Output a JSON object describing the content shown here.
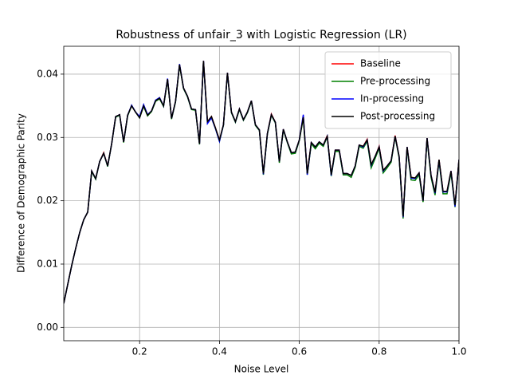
{
  "chart_data": {
    "type": "line",
    "title": "Robustness of unfair_3 with Logistic Regression (LR)",
    "xlabel": "Noise Level",
    "ylabel": "Difference of Demographic Parity",
    "x": [
      0.01,
      0.02,
      0.03,
      0.04,
      0.05,
      0.06,
      0.07,
      0.08,
      0.09,
      0.1,
      0.11,
      0.12,
      0.13,
      0.14,
      0.15,
      0.16,
      0.17,
      0.18,
      0.19,
      0.2,
      0.21,
      0.22,
      0.23,
      0.24,
      0.25,
      0.26,
      0.27,
      0.28,
      0.29,
      0.3,
      0.31,
      0.32,
      0.33,
      0.34,
      0.35,
      0.36,
      0.37,
      0.38,
      0.39,
      0.4,
      0.41,
      0.42,
      0.43,
      0.44,
      0.45,
      0.46,
      0.47,
      0.48,
      0.49,
      0.5,
      0.51,
      0.52,
      0.53,
      0.54,
      0.55,
      0.56,
      0.57,
      0.58,
      0.59,
      0.6,
      0.61,
      0.62,
      0.63,
      0.64,
      0.65,
      0.66,
      0.67,
      0.68,
      0.69,
      0.7,
      0.71,
      0.72,
      0.73,
      0.74,
      0.75,
      0.76,
      0.77,
      0.78,
      0.79,
      0.8,
      0.81,
      0.82,
      0.83,
      0.84,
      0.85,
      0.86,
      0.87,
      0.88,
      0.89,
      0.9,
      0.91,
      0.92,
      0.93,
      0.94,
      0.95,
      0.96,
      0.97,
      0.98,
      0.99,
      1.0
    ],
    "series": [
      {
        "name": "Baseline",
        "color": "#ff0000",
        "values": [
          0.0038,
          0.0068,
          0.0098,
          0.0125,
          0.015,
          0.017,
          0.0182,
          0.0247,
          0.0235,
          0.0262,
          0.0276,
          0.0255,
          0.029,
          0.0333,
          0.0336,
          0.0293,
          0.0335,
          0.035,
          0.034,
          0.0332,
          0.035,
          0.0335,
          0.0342,
          0.0358,
          0.0362,
          0.035,
          0.0392,
          0.033,
          0.0357,
          0.0415,
          0.0378,
          0.0365,
          0.0345,
          0.0344,
          0.029,
          0.0421,
          0.0325,
          0.0333,
          0.0315,
          0.0296,
          0.032,
          0.0402,
          0.034,
          0.0325,
          0.0345,
          0.0328,
          0.034,
          0.0358,
          0.032,
          0.0312,
          0.0243,
          0.0306,
          0.0337,
          0.0324,
          0.0262,
          0.0313,
          0.0293,
          0.0276,
          0.0277,
          0.0296,
          0.0334,
          0.0243,
          0.0292,
          0.0285,
          0.0293,
          0.0288,
          0.0303,
          0.0241,
          0.028,
          0.028,
          0.0243,
          0.0243,
          0.024,
          0.0255,
          0.0288,
          0.0286,
          0.0297,
          0.0257,
          0.027,
          0.0286,
          0.0248,
          0.0255,
          0.0263,
          0.0303,
          0.027,
          0.0175,
          0.0285,
          0.0237,
          0.0236,
          0.0244,
          0.02,
          0.0299,
          0.024,
          0.0213,
          0.0265,
          0.0215,
          0.0215,
          0.0247,
          0.0193,
          0.0265
        ]
      },
      {
        "name": "Pre-processing",
        "color": "#008000",
        "values": [
          0.0038,
          0.0068,
          0.0098,
          0.0125,
          0.015,
          0.017,
          0.0182,
          0.0246,
          0.0234,
          0.0262,
          0.0275,
          0.0254,
          0.029,
          0.0332,
          0.0335,
          0.0292,
          0.0334,
          0.035,
          0.034,
          0.0331,
          0.0349,
          0.0334,
          0.0341,
          0.0357,
          0.0361,
          0.0349,
          0.0391,
          0.0329,
          0.0356,
          0.0414,
          0.0377,
          0.0364,
          0.0344,
          0.0343,
          0.0289,
          0.042,
          0.0323,
          0.0331,
          0.0314,
          0.0294,
          0.0319,
          0.0401,
          0.0339,
          0.0324,
          0.0344,
          0.0327,
          0.0339,
          0.0357,
          0.0319,
          0.0311,
          0.0241,
          0.0305,
          0.0335,
          0.0323,
          0.026,
          0.0312,
          0.0292,
          0.0274,
          0.0275,
          0.0295,
          0.0331,
          0.0241,
          0.029,
          0.0282,
          0.0291,
          0.0286,
          0.0301,
          0.0239,
          0.0278,
          0.0278,
          0.0241,
          0.0241,
          0.0237,
          0.0253,
          0.0286,
          0.0283,
          0.0294,
          0.0252,
          0.0267,
          0.0283,
          0.0244,
          0.0252,
          0.0261,
          0.0301,
          0.0268,
          0.0172,
          0.0283,
          0.0233,
          0.0232,
          0.0241,
          0.0198,
          0.0297,
          0.0237,
          0.0209,
          0.0262,
          0.0211,
          0.0211,
          0.0244,
          0.019,
          0.0263
        ]
      },
      {
        "name": "In-processing",
        "color": "#0000ff",
        "values": [
          0.0038,
          0.0068,
          0.0098,
          0.0125,
          0.015,
          0.017,
          0.0182,
          0.0247,
          0.0235,
          0.0262,
          0.0275,
          0.0255,
          0.029,
          0.0333,
          0.0336,
          0.0293,
          0.0335,
          0.0351,
          0.034,
          0.0333,
          0.0352,
          0.0336,
          0.0342,
          0.0359,
          0.0363,
          0.035,
          0.0393,
          0.033,
          0.0357,
          0.0416,
          0.0378,
          0.0365,
          0.0345,
          0.0344,
          0.029,
          0.0421,
          0.0322,
          0.0331,
          0.0314,
          0.0294,
          0.032,
          0.0402,
          0.034,
          0.0325,
          0.0345,
          0.0328,
          0.034,
          0.0358,
          0.032,
          0.0312,
          0.0242,
          0.0306,
          0.0336,
          0.0324,
          0.0262,
          0.0313,
          0.0293,
          0.0276,
          0.0277,
          0.0296,
          0.0336,
          0.0241,
          0.0292,
          0.0285,
          0.0293,
          0.0288,
          0.0302,
          0.024,
          0.028,
          0.028,
          0.0243,
          0.0243,
          0.024,
          0.0255,
          0.0288,
          0.0285,
          0.0296,
          0.0256,
          0.027,
          0.0285,
          0.0247,
          0.0255,
          0.0263,
          0.0302,
          0.027,
          0.0174,
          0.0285,
          0.0236,
          0.0235,
          0.0244,
          0.02,
          0.0299,
          0.024,
          0.0212,
          0.0264,
          0.0214,
          0.0214,
          0.0247,
          0.0191,
          0.0265
        ]
      },
      {
        "name": "Post-processing",
        "color": "#000000",
        "values": [
          0.0038,
          0.0068,
          0.0098,
          0.0125,
          0.015,
          0.017,
          0.0182,
          0.0247,
          0.0235,
          0.0262,
          0.0275,
          0.0255,
          0.029,
          0.0333,
          0.0336,
          0.0293,
          0.0335,
          0.035,
          0.034,
          0.0331,
          0.035,
          0.0335,
          0.0342,
          0.0358,
          0.0362,
          0.035,
          0.0392,
          0.033,
          0.0357,
          0.0415,
          0.0378,
          0.0365,
          0.0345,
          0.0344,
          0.029,
          0.0421,
          0.0325,
          0.0333,
          0.0315,
          0.0296,
          0.032,
          0.0402,
          0.034,
          0.0325,
          0.0345,
          0.0328,
          0.034,
          0.0358,
          0.032,
          0.0312,
          0.0243,
          0.0306,
          0.0336,
          0.0324,
          0.0262,
          0.0313,
          0.0293,
          0.0276,
          0.0277,
          0.0296,
          0.0332,
          0.0243,
          0.0292,
          0.0285,
          0.0293,
          0.0288,
          0.0302,
          0.0241,
          0.028,
          0.028,
          0.0243,
          0.0243,
          0.024,
          0.0255,
          0.0288,
          0.0286,
          0.0296,
          0.0257,
          0.027,
          0.0285,
          0.0248,
          0.0255,
          0.0263,
          0.0302,
          0.027,
          0.0175,
          0.0285,
          0.0237,
          0.0236,
          0.0244,
          0.02,
          0.0299,
          0.024,
          0.0213,
          0.0265,
          0.0215,
          0.0215,
          0.0247,
          0.0193,
          0.0265
        ]
      }
    ],
    "xlim": [
      0.01,
      1.0
    ],
    "xticks": [
      0.2,
      0.4,
      0.6,
      0.8,
      {
        "value": 1.0,
        "label": "1.0"
      }
    ],
    "ylim": [
      -0.0021,
      0.0444
    ],
    "yticks": [
      {
        "value": 0,
        "label": "0.00"
      },
      {
        "value": 0.01,
        "label": "0.01"
      },
      {
        "value": 0.02,
        "label": "0.02"
      },
      {
        "value": 0.03,
        "label": "0.03"
      },
      {
        "value": 0.04,
        "label": "0.04"
      }
    ],
    "grid": true,
    "legend": "upper right"
  }
}
